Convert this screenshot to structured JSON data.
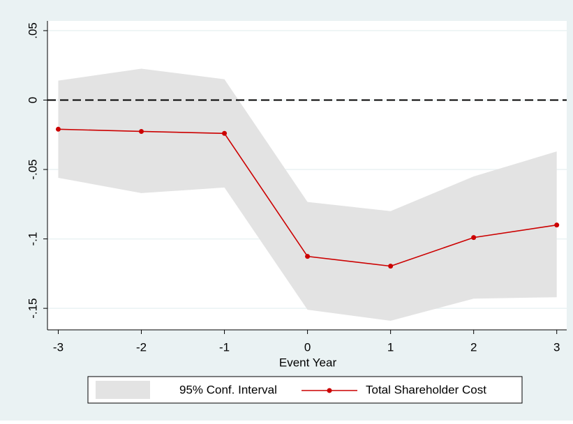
{
  "chart_data": {
    "type": "line",
    "x": [
      -3,
      -2,
      -1,
      0,
      1,
      2,
      3
    ],
    "xlim": [
      -3.13,
      3.12
    ],
    "xticks": [
      -3,
      -2,
      -1,
      0,
      1,
      2,
      3
    ],
    "ylim": [
      -0.1655,
      0.057
    ],
    "yticks": [
      {
        "value": 0.05,
        "label": ".05"
      },
      0,
      {
        "value": -0.05,
        "label": "-.05"
      },
      {
        "value": -0.1,
        "label": "-.1"
      },
      {
        "value": -0.15,
        "label": "-.15"
      }
    ],
    "grid": true,
    "hline": 0,
    "x_label": "Event Year",
    "series": [
      {
        "name": "95% Conf. Interval",
        "color": "#e3e3e3",
        "kind": "band",
        "lower": [
          -0.056,
          -0.067,
          -0.063,
          -0.151,
          -0.159,
          -0.143,
          -0.142
        ],
        "upper": [
          0.014,
          0.0226,
          0.015,
          -0.0734,
          -0.08,
          -0.055,
          -0.037
        ]
      },
      {
        "name": "Total Shareholder Cost",
        "color": "#cc0000",
        "values": [
          -0.021,
          -0.0226,
          -0.024,
          -0.1126,
          -0.1196,
          -0.099,
          -0.09
        ]
      }
    ]
  }
}
